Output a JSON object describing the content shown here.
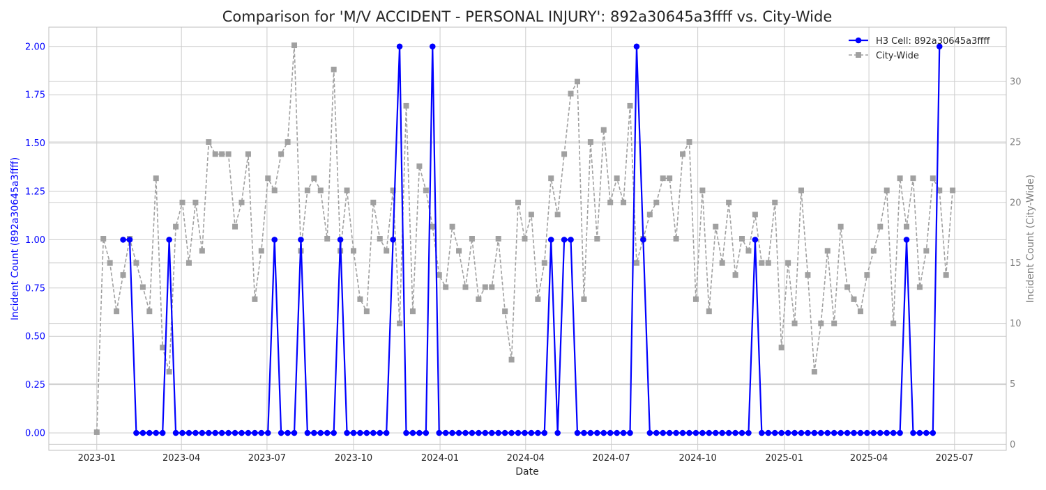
{
  "chart_data": {
    "type": "line",
    "title": "Comparison for 'M/V ACCIDENT - PERSONAL INJURY': 892a30645a3ffff vs. City-Wide",
    "xlabel": "Date",
    "ylabel_left": "Incident Count (892a30645a3ffff)",
    "ylabel_right": "Incident Count (City-Wide)",
    "xlim": [
      "2022-11-11",
      "2025-08-25"
    ],
    "ylim_left": [
      -0.09,
      2.1
    ],
    "ylim_right": [
      -0.5,
      34.5
    ],
    "x_ticks": [
      "2023-01",
      "2023-04",
      "2023-07",
      "2023-10",
      "2024-01",
      "2024-04",
      "2024-07",
      "2024-10",
      "2025-01",
      "2025-04",
      "2025-07"
    ],
    "x_tick_dates": [
      "2023-01-01",
      "2023-04-01",
      "2023-07-01",
      "2023-10-01",
      "2024-01-01",
      "2024-04-01",
      "2024-07-01",
      "2024-10-01",
      "2025-01-01",
      "2025-04-01",
      "2025-07-01"
    ],
    "y_ticks_left": [
      "0.00",
      "0.25",
      "0.50",
      "0.75",
      "1.00",
      "1.25",
      "1.50",
      "1.75",
      "2.00"
    ],
    "y_ticks_right": [
      "0",
      "5",
      "10",
      "15",
      "20",
      "25",
      "30"
    ],
    "grid": true,
    "legend_position": "top-right",
    "series": [
      {
        "name": "H3 Cell: 892a30645a3ffff",
        "axis": "left",
        "color": "#0000ff",
        "marker": "circle",
        "style": "solid",
        "x": [
          "2023-01-29",
          "2023-02-05",
          "2023-02-12",
          "2023-02-19",
          "2023-02-26",
          "2023-03-05",
          "2023-03-12",
          "2023-03-19",
          "2023-03-26",
          "2023-04-02",
          "2023-04-09",
          "2023-04-16",
          "2023-04-23",
          "2023-04-30",
          "2023-05-07",
          "2023-05-14",
          "2023-05-21",
          "2023-05-28",
          "2023-06-04",
          "2023-06-11",
          "2023-06-18",
          "2023-06-25",
          "2023-07-02",
          "2023-07-09",
          "2023-07-16",
          "2023-07-23",
          "2023-07-30",
          "2023-08-06",
          "2023-08-13",
          "2023-08-20",
          "2023-08-27",
          "2023-09-03",
          "2023-09-10",
          "2023-09-17",
          "2023-09-24",
          "2023-10-01",
          "2023-10-08",
          "2023-10-15",
          "2023-10-22",
          "2023-10-29",
          "2023-11-05",
          "2023-11-12",
          "2023-11-19",
          "2023-11-26",
          "2023-12-03",
          "2023-12-10",
          "2023-12-17",
          "2023-12-24",
          "2023-12-31",
          "2024-01-07",
          "2024-01-14",
          "2024-01-21",
          "2024-01-28",
          "2024-02-04",
          "2024-02-11",
          "2024-02-18",
          "2024-02-25",
          "2024-03-03",
          "2024-03-10",
          "2024-03-17",
          "2024-03-24",
          "2024-03-31",
          "2024-04-07",
          "2024-04-14",
          "2024-04-21",
          "2024-04-28",
          "2024-05-05",
          "2024-05-12",
          "2024-05-19",
          "2024-05-26",
          "2024-06-02",
          "2024-06-09",
          "2024-06-16",
          "2024-06-23",
          "2024-06-30",
          "2024-07-07",
          "2024-07-14",
          "2024-07-21",
          "2024-07-28",
          "2024-08-04",
          "2024-08-11",
          "2024-08-18",
          "2024-08-25",
          "2024-09-01",
          "2024-09-08",
          "2024-09-15",
          "2024-09-22",
          "2024-09-29",
          "2024-10-06",
          "2024-10-13",
          "2024-10-20",
          "2024-10-27",
          "2024-11-03",
          "2024-11-10",
          "2024-11-17",
          "2024-11-24",
          "2024-12-01",
          "2024-12-08",
          "2024-12-15",
          "2024-12-22",
          "2024-12-29",
          "2025-01-05",
          "2025-01-12",
          "2025-01-19",
          "2025-01-26",
          "2025-02-02",
          "2025-02-09",
          "2025-02-16",
          "2025-02-23",
          "2025-03-02",
          "2025-03-09",
          "2025-03-16",
          "2025-03-23",
          "2025-03-30",
          "2025-04-06",
          "2025-04-13",
          "2025-04-20",
          "2025-04-27",
          "2025-05-04",
          "2025-05-11",
          "2025-05-18",
          "2025-05-25",
          "2025-06-01",
          "2025-06-08",
          "2025-06-15"
        ],
        "values": [
          1,
          1,
          0,
          0,
          0,
          0,
          0,
          1,
          0,
          0,
          0,
          0,
          0,
          0,
          0,
          0,
          0,
          0,
          0,
          0,
          0,
          0,
          0,
          1,
          0,
          0,
          0,
          1,
          0,
          0,
          0,
          0,
          0,
          1,
          0,
          0,
          0,
          0,
          0,
          0,
          0,
          1,
          2,
          0,
          0,
          0,
          0,
          2,
          0,
          0,
          0,
          0,
          0,
          0,
          0,
          0,
          0,
          0,
          0,
          0,
          0,
          0,
          0,
          0,
          0,
          1,
          0,
          1,
          1,
          0,
          0,
          0,
          0,
          0,
          0,
          0,
          0,
          0,
          2,
          1,
          0,
          0,
          0,
          0,
          0,
          0,
          0,
          0,
          0,
          0,
          0,
          0,
          0,
          0,
          0,
          0,
          1,
          0,
          0,
          0,
          0,
          0,
          0,
          0,
          0,
          0,
          0,
          0,
          0,
          0,
          0,
          0,
          0,
          0,
          0,
          0,
          0,
          0,
          0,
          1,
          0,
          0,
          0,
          0,
          2
        ]
      },
      {
        "name": "City-Wide",
        "axis": "right",
        "color": "#a0a0a0",
        "marker": "square",
        "style": "dashed",
        "x": [
          "2023-01-01",
          "2023-01-08",
          "2023-01-15",
          "2023-01-22",
          "2023-01-29",
          "2023-02-05",
          "2023-02-12",
          "2023-02-19",
          "2023-02-26",
          "2023-03-05",
          "2023-03-12",
          "2023-03-19",
          "2023-03-26",
          "2023-04-02",
          "2023-04-09",
          "2023-04-16",
          "2023-04-23",
          "2023-04-30",
          "2023-05-07",
          "2023-05-14",
          "2023-05-21",
          "2023-05-28",
          "2023-06-04",
          "2023-06-11",
          "2023-06-18",
          "2023-06-25",
          "2023-07-02",
          "2023-07-09",
          "2023-07-16",
          "2023-07-23",
          "2023-07-30",
          "2023-08-06",
          "2023-08-13",
          "2023-08-20",
          "2023-08-27",
          "2023-09-03",
          "2023-09-10",
          "2023-09-17",
          "2023-09-24",
          "2023-10-01",
          "2023-10-08",
          "2023-10-15",
          "2023-10-22",
          "2023-10-29",
          "2023-11-05",
          "2023-11-12",
          "2023-11-19",
          "2023-11-26",
          "2023-12-03",
          "2023-12-10",
          "2023-12-17",
          "2023-12-24",
          "2023-12-31",
          "2024-01-07",
          "2024-01-14",
          "2024-01-21",
          "2024-01-28",
          "2024-02-04",
          "2024-02-11",
          "2024-02-18",
          "2024-02-25",
          "2024-03-03",
          "2024-03-10",
          "2024-03-17",
          "2024-03-24",
          "2024-03-31",
          "2024-04-07",
          "2024-04-14",
          "2024-04-21",
          "2024-04-28",
          "2024-05-05",
          "2024-05-12",
          "2024-05-19",
          "2024-05-26",
          "2024-06-02",
          "2024-06-09",
          "2024-06-16",
          "2024-06-23",
          "2024-06-30",
          "2024-07-07",
          "2024-07-14",
          "2024-07-21",
          "2024-07-28",
          "2024-08-04",
          "2024-08-11",
          "2024-08-18",
          "2024-08-25",
          "2024-09-01",
          "2024-09-08",
          "2024-09-15",
          "2024-09-22",
          "2024-09-29",
          "2024-10-06",
          "2024-10-13",
          "2024-10-20",
          "2024-10-27",
          "2024-11-03",
          "2024-11-10",
          "2024-11-17",
          "2024-11-24",
          "2024-12-01",
          "2024-12-08",
          "2024-12-15",
          "2024-12-22",
          "2024-12-29",
          "2025-01-05",
          "2025-01-12",
          "2025-01-19",
          "2025-01-26",
          "2025-02-02",
          "2025-02-09",
          "2025-02-16",
          "2025-02-23",
          "2025-03-02",
          "2025-03-09",
          "2025-03-16",
          "2025-03-23",
          "2025-03-30",
          "2025-04-06",
          "2025-04-13",
          "2025-04-20",
          "2025-04-27",
          "2025-05-04",
          "2025-05-11",
          "2025-05-18",
          "2025-05-25",
          "2025-06-01",
          "2025-06-08",
          "2025-06-15",
          "2025-06-22",
          "2025-06-29"
        ],
        "values": [
          1,
          17,
          15,
          11,
          14,
          17,
          15,
          13,
          11,
          22,
          8,
          6,
          18,
          20,
          15,
          20,
          16,
          25,
          24,
          24,
          24,
          18,
          20,
          24,
          12,
          16,
          22,
          21,
          24,
          25,
          33,
          16,
          21,
          22,
          21,
          17,
          31,
          16,
          21,
          16,
          12,
          11,
          20,
          17,
          16,
          21,
          10,
          28,
          11,
          23,
          21,
          18,
          14,
          13,
          18,
          16,
          13,
          17,
          12,
          13,
          13,
          17,
          11,
          7,
          20,
          17,
          19,
          12,
          15,
          22,
          19,
          24,
          29,
          30,
          12,
          25,
          17,
          26,
          20,
          22,
          20,
          28,
          15,
          17,
          19,
          20,
          22,
          22,
          17,
          24,
          25,
          12,
          21,
          11,
          18,
          15,
          20,
          14,
          17,
          16,
          19,
          15,
          15,
          20,
          8,
          15,
          10,
          21,
          14,
          6,
          10,
          16,
          10,
          18,
          13,
          12,
          11,
          14,
          16,
          18,
          21,
          10,
          22,
          18,
          22,
          13,
          16,
          22,
          21,
          14,
          21
        ]
      }
    ]
  }
}
